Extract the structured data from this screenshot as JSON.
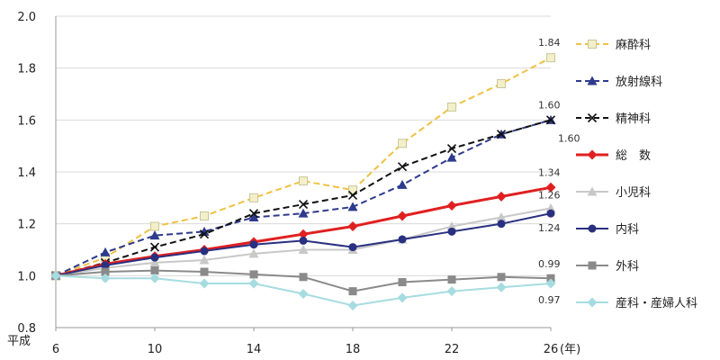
{
  "chart_data": {
    "type": "line",
    "title": "",
    "xlabel": "平成",
    "x_unit": "(年)",
    "x": [
      6,
      8,
      10,
      12,
      14,
      16,
      18,
      20,
      22,
      24,
      26
    ],
    "x_ticks": [
      6,
      10,
      14,
      18,
      22,
      26
    ],
    "ylim": [
      0.8,
      2.0
    ],
    "y_ticks": [
      "0.8",
      "1.0",
      "1.2",
      "1.4",
      "1.6",
      "1.8",
      "2.0"
    ],
    "grid": "horizontal",
    "legend_position": "right",
    "series": [
      {
        "name": "麻酔科",
        "color": "#F0C040",
        "marker": "square-open",
        "dash": true,
        "values": [
          1.0,
          1.07,
          1.19,
          1.23,
          1.3,
          1.365,
          1.33,
          1.51,
          1.65,
          1.74,
          1.84
        ],
        "end_label": "1.84"
      },
      {
        "name": "放射線科",
        "color": "#2E3A8C",
        "marker": "triangle",
        "dash": true,
        "values": [
          1.0,
          1.09,
          1.155,
          1.17,
          1.225,
          1.24,
          1.265,
          1.35,
          1.455,
          1.545,
          1.6
        ],
        "end_label": "1.60"
      },
      {
        "name": "精神科",
        "color": "#111111",
        "marker": "x",
        "dash": true,
        "values": [
          1.0,
          1.05,
          1.11,
          1.16,
          1.24,
          1.275,
          1.31,
          1.42,
          1.49,
          1.545,
          1.6
        ],
        "end_label": "1.60"
      },
      {
        "name": "総　数",
        "color": "#E02020",
        "marker": "diamond",
        "dash": false,
        "thick": true,
        "values": [
          1.0,
          1.045,
          1.075,
          1.1,
          1.13,
          1.16,
          1.19,
          1.23,
          1.27,
          1.305,
          1.34
        ],
        "end_label": "1.34"
      },
      {
        "name": "小児科",
        "color": "#C8C8C8",
        "marker": "triangle",
        "dash": false,
        "values": [
          1.0,
          1.03,
          1.05,
          1.06,
          1.085,
          1.1,
          1.1,
          1.14,
          1.19,
          1.225,
          1.26
        ],
        "end_label": "1.26"
      },
      {
        "name": "内科",
        "color": "#2A3080",
        "marker": "circle",
        "dash": false,
        "values": [
          1.0,
          1.04,
          1.07,
          1.095,
          1.12,
          1.135,
          1.11,
          1.14,
          1.17,
          1.2,
          1.24
        ],
        "end_label": "1.24"
      },
      {
        "name": "外科",
        "color": "#8A8A8A",
        "marker": "square",
        "dash": false,
        "values": [
          1.0,
          1.015,
          1.02,
          1.015,
          1.005,
          0.995,
          0.94,
          0.975,
          0.985,
          0.995,
          0.99
        ],
        "end_label": "0.99"
      },
      {
        "name": "産科・産婦人科",
        "color": "#A6DCE0",
        "marker": "diamond",
        "dash": false,
        "values": [
          1.0,
          0.99,
          0.99,
          0.97,
          0.97,
          0.93,
          0.885,
          0.915,
          0.94,
          0.955,
          0.97
        ],
        "end_label": "0.97"
      }
    ]
  }
}
